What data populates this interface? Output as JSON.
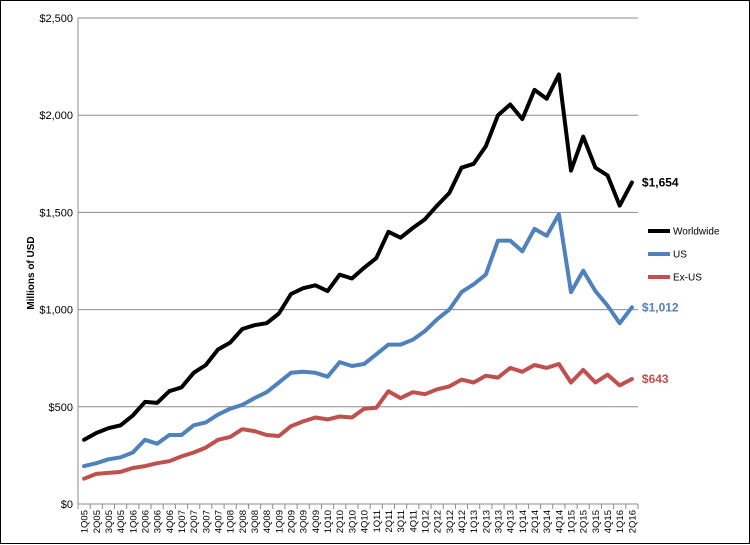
{
  "chart_data": {
    "type": "line",
    "title": "",
    "xlabel": "",
    "ylabel": "Millions of USD",
    "ylim": [
      0,
      2500
    ],
    "yticks": [
      0,
      500,
      1000,
      1500,
      2000,
      2500
    ],
    "ytick_labels": [
      "$0",
      "$500",
      "$1,000",
      "$1,500",
      "$2,000",
      "$2,500"
    ],
    "grid": "horizontal",
    "legend_position": "right",
    "categories": [
      "1Q05",
      "2Q05",
      "3Q05",
      "4Q05",
      "1Q06",
      "2Q06",
      "3Q06",
      "4Q06",
      "1Q07",
      "2Q07",
      "3Q07",
      "4Q07",
      "1Q08",
      "2Q08",
      "3Q08",
      "4Q08",
      "1Q09",
      "2Q09",
      "3Q09",
      "4Q09",
      "1Q10",
      "2Q10",
      "3Q10",
      "4Q10",
      "1Q11",
      "2Q11",
      "3Q11",
      "4Q11",
      "1Q12",
      "2Q12",
      "3Q12",
      "4Q12",
      "1Q13",
      "2Q13",
      "3Q13",
      "4Q13",
      "1Q14",
      "2Q14",
      "3Q14",
      "4Q14",
      "1Q15",
      "2Q15",
      "3Q15",
      "4Q15",
      "1Q16",
      "2Q16"
    ],
    "series": [
      {
        "name": "Worldwide",
        "color": "#000000",
        "end_label": "$1,654",
        "values": [
          330,
          365,
          390,
          405,
          455,
          525,
          520,
          580,
          600,
          675,
          715,
          795,
          830,
          900,
          920,
          930,
          980,
          1080,
          1110,
          1125,
          1095,
          1180,
          1160,
          1215,
          1265,
          1400,
          1370,
          1420,
          1465,
          1535,
          1600,
          1730,
          1750,
          1840,
          2000,
          2055,
          1980,
          2130,
          2085,
          2210,
          1715,
          1890,
          1730,
          1690,
          1535,
          1654
        ]
      },
      {
        "name": "US",
        "color": "#4f81bd",
        "end_label": "$1,012",
        "values": [
          195,
          210,
          230,
          240,
          265,
          330,
          310,
          355,
          355,
          405,
          420,
          460,
          490,
          510,
          545,
          575,
          625,
          675,
          680,
          675,
          655,
          730,
          710,
          720,
          770,
          820,
          820,
          845,
          890,
          950,
          1000,
          1090,
          1130,
          1180,
          1355,
          1355,
          1300,
          1415,
          1380,
          1490,
          1090,
          1200,
          1095,
          1020,
          930,
          1012
        ]
      },
      {
        "name": "Ex-US",
        "color": "#c0504d",
        "end_label": "$643",
        "values": [
          130,
          155,
          160,
          165,
          185,
          195,
          210,
          220,
          245,
          265,
          290,
          330,
          345,
          385,
          375,
          355,
          350,
          400,
          425,
          445,
          435,
          450,
          445,
          490,
          495,
          580,
          545,
          575,
          565,
          590,
          605,
          640,
          625,
          660,
          650,
          700,
          680,
          715,
          700,
          720,
          625,
          690,
          625,
          665,
          610,
          643
        ]
      }
    ]
  }
}
